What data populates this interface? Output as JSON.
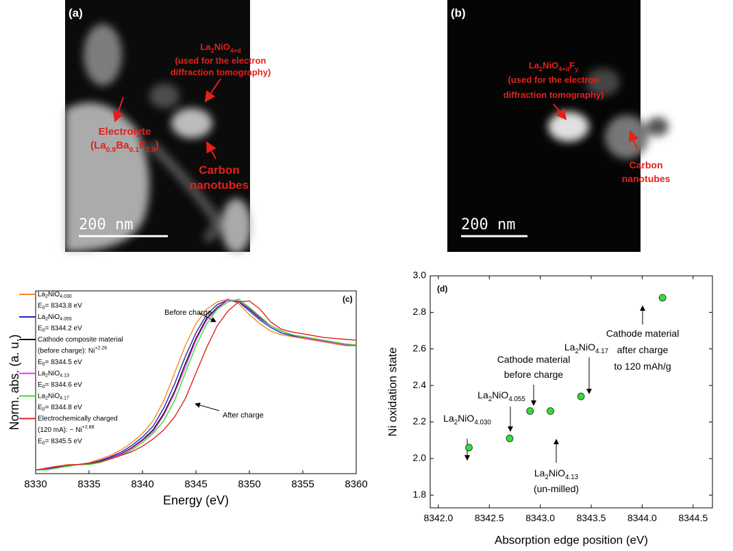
{
  "micrographs": [
    {
      "label": "(a)",
      "scale_bar": "200 nm",
      "annotations": [
        {
          "lines": [
            [
              "Electrolyte"
            ],
            [
              "(La",
              {
                "sub": "0.9"
              },
              "Ba",
              {
                "sub": "0.1"
              },
              "F",
              {
                "sub": "2.9"
              },
              ")"
            ]
          ]
        },
        {
          "lines": [
            [
              "La",
              {
                "sub": "2"
              },
              "NiO",
              {
                "sub": "4+d"
              }
            ],
            [
              "(used for the electron"
            ],
            [
              "diffraction tomography)"
            ]
          ]
        },
        {
          "lines": [
            [
              "Carbon"
            ],
            [
              "nanotubes"
            ]
          ]
        }
      ]
    },
    {
      "label": "(b)",
      "scale_bar": "200 nm",
      "annotations": [
        {
          "lines": [
            [
              "La",
              {
                "sub": "2"
              },
              "NiO",
              {
                "sub": "4+d"
              },
              "F",
              {
                "sub": "y"
              }
            ],
            [
              "(used for the electron"
            ],
            [
              "diffraction tomography)"
            ]
          ]
        },
        {
          "lines": [
            [
              "Carbon"
            ],
            [
              "nanotubes"
            ]
          ]
        }
      ]
    }
  ],
  "chart_data": [
    {
      "type": "line",
      "panel_label": "(c)",
      "x_label": "Energy (eV)",
      "y_label": "Norm. abs. (a. u.)",
      "xlim": [
        8330,
        8360
      ],
      "xticks": [
        8330,
        8335,
        8340,
        8345,
        8350,
        8355,
        8360
      ],
      "ylim": [
        0,
        1
      ],
      "annotations": [
        "Before charge",
        "After charge"
      ],
      "x": [
        8330,
        8331,
        8332,
        8333,
        8334,
        8335,
        8336,
        8337,
        8338,
        8339,
        8340,
        8341,
        8342,
        8343,
        8344,
        8345,
        8346,
        8347,
        8348,
        8349,
        8350,
        8351,
        8352,
        8353,
        8354,
        8355,
        8356,
        8357,
        8358,
        8359,
        8360
      ],
      "series": [
        {
          "name": [
            [
              "La",
              {
                "sub": "2"
              },
              "NiO",
              {
                "sub": "4.030"
              }
            ],
            [
              "E",
              {
                "sub": "0"
              },
              "= 8343.8 eV"
            ]
          ],
          "color": "#f28a20",
          "values": [
            0.02,
            0.03,
            0.04,
            0.05,
            0.05,
            0.06,
            0.08,
            0.1,
            0.13,
            0.17,
            0.22,
            0.29,
            0.4,
            0.55,
            0.7,
            0.82,
            0.9,
            0.94,
            0.955,
            0.93,
            0.87,
            0.82,
            0.78,
            0.76,
            0.75,
            0.74,
            0.73,
            0.72,
            0.71,
            0.7,
            0.7
          ]
        },
        {
          "name": [
            [
              "La",
              {
                "sub": "2"
              },
              "NiO",
              {
                "sub": "4.055"
              }
            ],
            [
              "E",
              {
                "sub": "0"
              },
              "= 8344.2 eV"
            ]
          ],
          "color": "#2222cc",
          "values": [
            0.02,
            0.026,
            0.036,
            0.046,
            0.05,
            0.056,
            0.072,
            0.092,
            0.118,
            0.154,
            0.2,
            0.26,
            0.36,
            0.49,
            0.64,
            0.77,
            0.87,
            0.925,
            0.95,
            0.94,
            0.89,
            0.84,
            0.8,
            0.77,
            0.755,
            0.745,
            0.735,
            0.725,
            0.715,
            0.705,
            0.7
          ]
        },
        {
          "name": [
            [
              "Cathode composite material"
            ],
            [
              "(before charge): Ni",
              {
                "sup": "+2.26"
              }
            ],
            [
              "E",
              {
                "sub": "0"
              },
              "= 8344.5 eV"
            ]
          ],
          "color": "#000000",
          "values": [
            0.02,
            0.023,
            0.033,
            0.043,
            0.05,
            0.053,
            0.066,
            0.086,
            0.109,
            0.142,
            0.185,
            0.24,
            0.33,
            0.45,
            0.6,
            0.74,
            0.85,
            0.91,
            0.95,
            0.945,
            0.9,
            0.85,
            0.81,
            0.78,
            0.76,
            0.745,
            0.735,
            0.725,
            0.715,
            0.705,
            0.7
          ]
        },
        {
          "name": [
            [
              "La",
              {
                "sub": "2"
              },
              "NiO",
              {
                "sub": "4.13"
              }
            ],
            [
              "E",
              {
                "sub": "0"
              },
              "= 8344.6 eV"
            ]
          ],
          "color": "#ee33ee",
          "values": [
            0.02,
            0.023,
            0.032,
            0.042,
            0.05,
            0.052,
            0.064,
            0.084,
            0.106,
            0.138,
            0.18,
            0.23,
            0.32,
            0.44,
            0.58,
            0.73,
            0.84,
            0.905,
            0.95,
            0.945,
            0.905,
            0.855,
            0.81,
            0.78,
            0.76,
            0.745,
            0.735,
            0.725,
            0.715,
            0.705,
            0.7
          ]
        },
        {
          "name": [
            [
              "La",
              {
                "sub": "2"
              },
              "NiO",
              {
                "sub": "4.17"
              }
            ],
            [
              "E",
              {
                "sub": "0"
              },
              "= 8344.8 eV"
            ]
          ],
          "color": "#33dd33",
          "values": [
            0.02,
            0.02,
            0.03,
            0.04,
            0.05,
            0.05,
            0.06,
            0.08,
            0.1,
            0.13,
            0.17,
            0.22,
            0.29,
            0.4,
            0.55,
            0.7,
            0.82,
            0.9,
            0.94,
            0.955,
            0.91,
            0.86,
            0.81,
            0.78,
            0.76,
            0.75,
            0.74,
            0.73,
            0.72,
            0.71,
            0.705
          ]
        },
        {
          "name": [
            [
              "Electrochemically charged"
            ],
            [
              "(120 mA): ~ Ni",
              {
                "sup": "+2.88"
              }
            ],
            [
              "E",
              {
                "sub": "0"
              },
              "= 8345.5 eV"
            ]
          ],
          "color": "#e02020",
          "values": [
            0.02,
            0.03,
            0.04,
            0.045,
            0.05,
            0.055,
            0.065,
            0.08,
            0.1,
            0.12,
            0.15,
            0.19,
            0.24,
            0.31,
            0.41,
            0.55,
            0.69,
            0.81,
            0.89,
            0.94,
            0.945,
            0.9,
            0.83,
            0.79,
            0.775,
            0.765,
            0.755,
            0.745,
            0.74,
            0.735,
            0.73
          ]
        }
      ]
    },
    {
      "type": "scatter",
      "panel_label": "(d)",
      "x_label": "Absorption edge position (eV)",
      "y_label": "Ni oxidation state",
      "xlim": [
        8341.92,
        8344.69
      ],
      "xticks": [
        {
          "value": 8342.0,
          "label": "8342.0"
        },
        {
          "value": 8342.5,
          "label": "8342.5"
        },
        {
          "value": 8343.0,
          "label": "8343.0"
        },
        {
          "value": 8343.5,
          "label": "8343.5"
        },
        {
          "value": 8344.0,
          "label": "8344.0"
        },
        {
          "value": 8344.5,
          "label": "8344.5"
        }
      ],
      "ylim": [
        1.73,
        3.0
      ],
      "yticks": [
        1.8,
        {
          "value": 2.0,
          "label": "2.0"
        },
        2.2,
        2.4,
        2.6,
        2.8,
        {
          "value": 3.0,
          "label": "3.0"
        }
      ],
      "color": "#33dd33",
      "x": [
        8342.3,
        8342.7,
        8342.9,
        8343.1,
        8343.4,
        8344.2
      ],
      "values": [
        2.06,
        2.11,
        2.26,
        2.26,
        2.34,
        2.88
      ],
      "annotations": [
        {
          "lines": [
            [
              "La",
              {
                "sub": "2"
              },
              "NiO",
              {
                "sub": "4.030"
              }
            ]
          ]
        },
        {
          "lines": [
            [
              "La",
              {
                "sub": "2"
              },
              "NiO",
              {
                "sub": "4.055"
              }
            ]
          ]
        },
        {
          "lines": [
            [
              "Cathode material"
            ],
            [
              "before charge"
            ]
          ]
        },
        {
          "lines": [
            [
              "La",
              {
                "sub": "2"
              },
              "NiO",
              {
                "sub": "4.13"
              }
            ],
            [
              "(un-milled)"
            ]
          ]
        },
        {
          "lines": [
            [
              "La",
              {
                "sub": "2"
              },
              "NiO",
              {
                "sub": "4.17"
              }
            ]
          ]
        },
        {
          "lines": [
            [
              "Cathode material"
            ],
            [
              "after charge"
            ],
            [
              "to 120 mAh/g"
            ]
          ]
        }
      ]
    }
  ]
}
